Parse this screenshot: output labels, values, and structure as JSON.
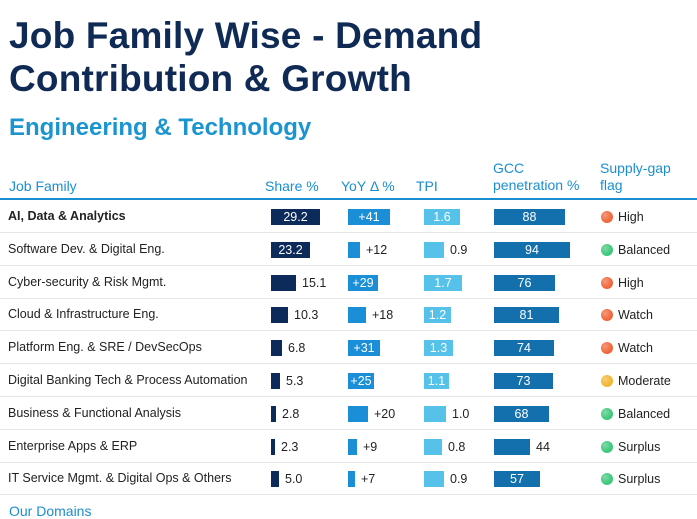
{
  "title_line1": "Job Family Wise - Demand",
  "title_line2": "Contribution & Growth",
  "subtitle": "Engineering & Technology",
  "headers": {
    "job_family": "Job Family",
    "share": "Share %",
    "yoy": "YoY Δ %",
    "tpi": "TPI",
    "gcc_line1": "GCC",
    "gcc_line2": "penetration %",
    "flag_line1": "Supply-gap",
    "flag_line2": "flag"
  },
  "colors": {
    "share": "#0c2a5a",
    "yoy": "#1a8fd8",
    "tpi": "#56c2ea",
    "gcc": "#1470ac",
    "flag_high": "#f0673a",
    "flag_watch": "#f0673a",
    "flag_moderate": "#f2b632",
    "flag_balanced": "#3fc77a",
    "flag_surplus": "#3fc77a"
  },
  "scales": {
    "share_max": 29.2,
    "yoy_max": 41,
    "tpi_max": 1.7,
    "gcc_max": 94
  },
  "rows": [
    {
      "name": "AI, Data & Analytics",
      "bold": true,
      "share": 29.2,
      "share_label": "29.2",
      "yoy": 41,
      "yoy_label": "+41",
      "tpi": 1.6,
      "tpi_label": "1.6",
      "gcc": 88,
      "gcc_label": "88",
      "flag": "High",
      "flag_level": "high"
    },
    {
      "name": "Software Dev. & Digital Eng.",
      "bold": false,
      "share": 23.2,
      "share_label": "23.2",
      "yoy": 12,
      "yoy_label": "+12",
      "tpi": 0.9,
      "tpi_label": "0.9",
      "gcc": 94,
      "gcc_label": "94",
      "flag": "Balanced",
      "flag_level": "balanced"
    },
    {
      "name": "Cyber-security & Risk Mgmt.",
      "bold": false,
      "share": 15.1,
      "share_label": "15.1",
      "yoy": 29,
      "yoy_label": "+29",
      "tpi": 1.7,
      "tpi_label": "1.7",
      "gcc": 76,
      "gcc_label": "76",
      "flag": "High",
      "flag_level": "high"
    },
    {
      "name": "Cloud & Infrastructure Eng.",
      "bold": false,
      "share": 10.3,
      "share_label": "10.3",
      "yoy": 18,
      "yoy_label": "+18",
      "tpi": 1.2,
      "tpi_label": "1.2",
      "gcc": 81,
      "gcc_label": "81",
      "flag": "Watch",
      "flag_level": "watch"
    },
    {
      "name": "Platform Eng. & SRE / DevSecOps",
      "bold": false,
      "share": 6.8,
      "share_label": "6.8",
      "yoy": 31,
      "yoy_label": "+31",
      "tpi": 1.3,
      "tpi_label": "1.3",
      "gcc": 74,
      "gcc_label": "74",
      "flag": "Watch",
      "flag_level": "watch"
    },
    {
      "name": "Digital Banking Tech & Process Automation",
      "bold": false,
      "share": 5.3,
      "share_label": "5.3",
      "yoy": 25,
      "yoy_label": "+25",
      "tpi": 1.1,
      "tpi_label": "1.1",
      "gcc": 73,
      "gcc_label": "73",
      "flag": "Moderate",
      "flag_level": "moderate"
    },
    {
      "name": "Business & Functional Analysis",
      "bold": false,
      "share": 2.8,
      "share_label": "2.8",
      "yoy": 20,
      "yoy_label": "+20",
      "tpi": 1.0,
      "tpi_label": "1.0",
      "gcc": 68,
      "gcc_label": "68",
      "flag": "Balanced",
      "flag_level": "balanced"
    },
    {
      "name": "Enterprise Apps & ERP",
      "bold": false,
      "share": 2.3,
      "share_label": "2.3",
      "yoy": 9,
      "yoy_label": "+9",
      "tpi": 0.8,
      "tpi_label": "0.8",
      "gcc": 44,
      "gcc_label": "44",
      "flag": "Surplus",
      "flag_level": "surplus"
    },
    {
      "name": "IT Service Mgmt. & Digital Ops & Others",
      "bold": false,
      "share": 5.0,
      "share_label": "5.0",
      "yoy": 7,
      "yoy_label": "+7",
      "tpi": 0.9,
      "tpi_label": "0.9",
      "gcc": 57,
      "gcc_label": "57",
      "flag": "Surplus",
      "flag_level": "surplus"
    }
  ],
  "footer_peek": "Our Domains"
}
